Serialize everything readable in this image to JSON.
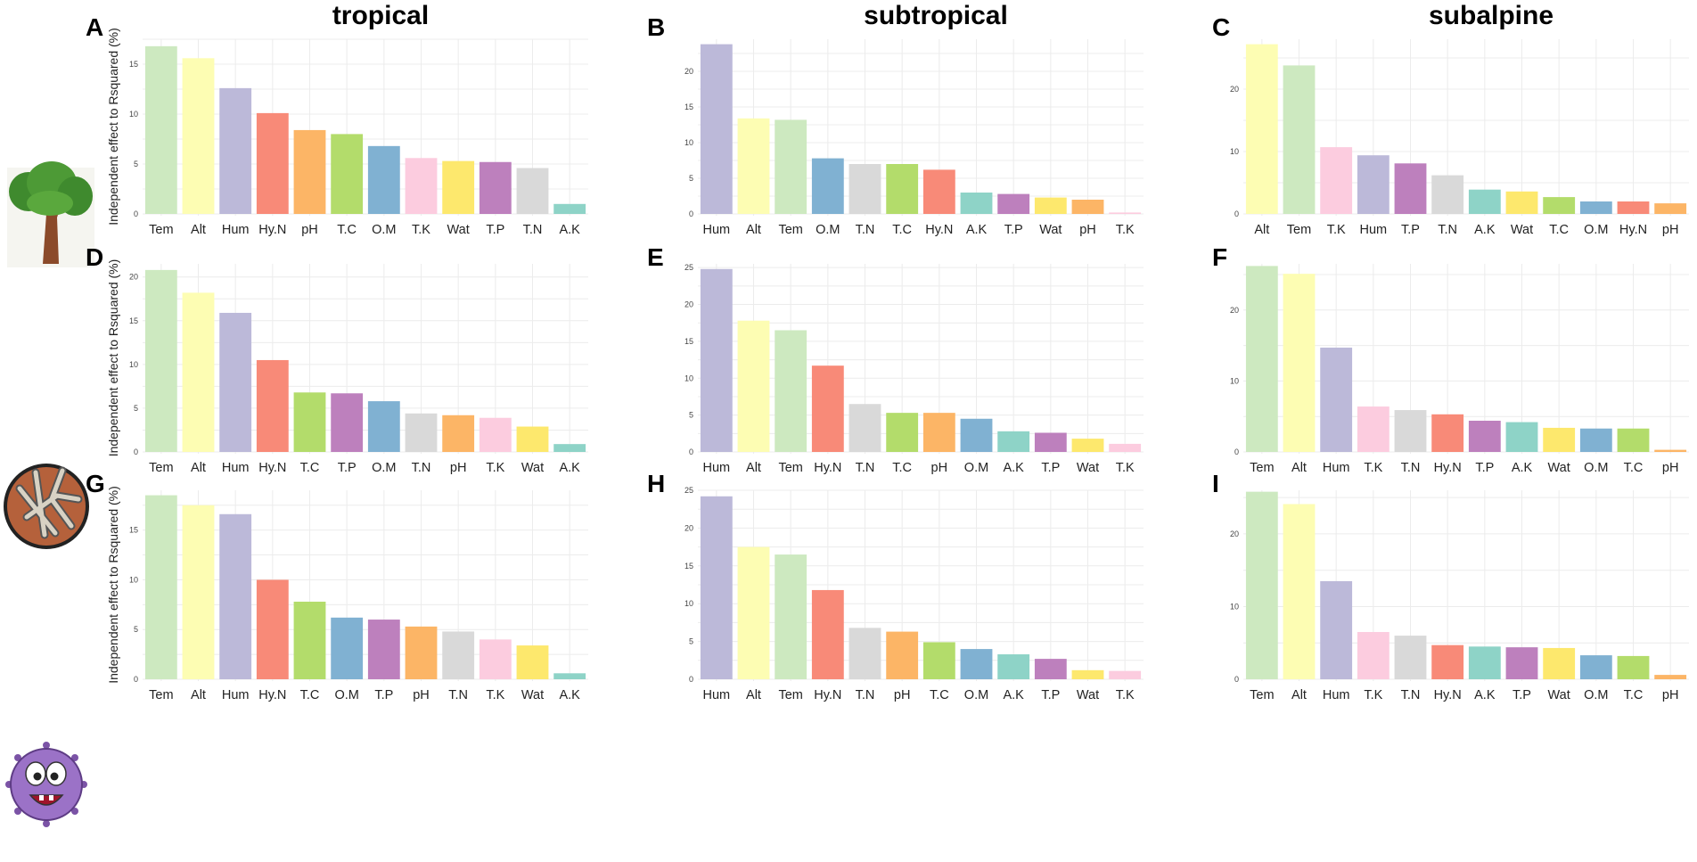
{
  "figure": {
    "column_titles": [
      "tropical",
      "subtropical",
      "subalpine"
    ],
    "ylabel": "Independent effect to Rsquared (%)",
    "row_icons": [
      "tree-icon",
      "fungus-hyphae-icon",
      "bacteria-cartoon-icon"
    ]
  },
  "colors": {
    "Tem": "#cde9c0",
    "Alt": "#fdfdb3",
    "Hum": "#bcb9d9",
    "Hy.N": "#f88a78",
    "pH": "#fcb566",
    "T.C": "#b3dc6b",
    "O.M": "#80b1d2",
    "T.K": "#fcccdf",
    "Wat": "#fde86d",
    "T.P": "#bd80bd",
    "T.N": "#d9d9d9",
    "A.K": "#8ed3c7"
  },
  "chart_data": [
    {
      "panel": "A",
      "type": "bar",
      "title": "tropical",
      "ylabel": "Independent effect to Rsquared (%)",
      "categories": [
        "Tem",
        "Alt",
        "Hum",
        "Hy.N",
        "pH",
        "T.C",
        "O.M",
        "T.K",
        "Wat",
        "T.P",
        "T.N",
        "A.K"
      ],
      "values": [
        16.8,
        15.6,
        12.6,
        10.1,
        8.4,
        8.0,
        6.8,
        5.6,
        5.3,
        5.2,
        4.6,
        1.0
      ],
      "ylim": [
        0,
        17.5
      ],
      "yticks": [
        0,
        5,
        10,
        15
      ]
    },
    {
      "panel": "B",
      "type": "bar",
      "title": "subtropical",
      "ylabel": "",
      "categories": [
        "Hum",
        "Alt",
        "Tem",
        "O.M",
        "T.N",
        "T.C",
        "Hy.N",
        "A.K",
        "T.P",
        "Wat",
        "pH",
        "T.K"
      ],
      "values": [
        23.8,
        13.4,
        13.2,
        7.8,
        7.0,
        7.0,
        6.2,
        3.0,
        2.8,
        2.3,
        2.0,
        0.2
      ],
      "ylim": [
        0,
        24.5
      ],
      "yticks": [
        0,
        5,
        10,
        15,
        20
      ]
    },
    {
      "panel": "C",
      "type": "bar",
      "title": "subalpine",
      "ylabel": "",
      "categories": [
        "Alt",
        "Tem",
        "T.K",
        "Hum",
        "T.P",
        "T.N",
        "A.K",
        "Wat",
        "T.C",
        "O.M",
        "Hy.N",
        "pH"
      ],
      "values": [
        27.2,
        23.8,
        10.7,
        9.4,
        8.1,
        6.2,
        3.9,
        3.6,
        2.7,
        2.0,
        2.0,
        1.7
      ],
      "ylim": [
        0,
        28
      ],
      "yticks": [
        0,
        10,
        20
      ]
    },
    {
      "panel": "D",
      "type": "bar",
      "title": "",
      "ylabel": "Independent effect to Rsquared (%)",
      "categories": [
        "Tem",
        "Alt",
        "Hum",
        "Hy.N",
        "T.C",
        "T.P",
        "O.M",
        "T.N",
        "pH",
        "T.K",
        "Wat",
        "A.K"
      ],
      "values": [
        20.8,
        18.2,
        15.9,
        10.5,
        6.8,
        6.7,
        5.8,
        4.4,
        4.2,
        3.9,
        2.9,
        0.9
      ],
      "ylim": [
        0,
        21.5
      ],
      "yticks": [
        0,
        5,
        10,
        15,
        20
      ]
    },
    {
      "panel": "E",
      "type": "bar",
      "title": "",
      "ylabel": "",
      "categories": [
        "Hum",
        "Alt",
        "Tem",
        "Hy.N",
        "T.N",
        "T.C",
        "pH",
        "O.M",
        "A.K",
        "T.P",
        "Wat",
        "T.K"
      ],
      "values": [
        24.8,
        17.8,
        16.5,
        11.7,
        6.5,
        5.3,
        5.3,
        4.5,
        2.8,
        2.6,
        1.8,
        1.1
      ],
      "ylim": [
        0,
        25.5
      ],
      "yticks": [
        0,
        5,
        10,
        15,
        20,
        25
      ]
    },
    {
      "panel": "F",
      "type": "bar",
      "title": "",
      "ylabel": "",
      "categories": [
        "Tem",
        "Alt",
        "Hum",
        "T.K",
        "T.N",
        "Hy.N",
        "T.P",
        "A.K",
        "Wat",
        "O.M",
        "T.C",
        "pH"
      ],
      "values": [
        26.2,
        25.1,
        14.7,
        6.4,
        5.9,
        5.3,
        4.4,
        4.2,
        3.4,
        3.3,
        3.3,
        0.3
      ],
      "ylim": [
        0,
        26.5
      ],
      "yticks": [
        0,
        10,
        20
      ]
    },
    {
      "panel": "G",
      "type": "bar",
      "title": "",
      "ylabel": "Independent effect to Rsquared (%)",
      "categories": [
        "Tem",
        "Alt",
        "Hum",
        "Hy.N",
        "T.C",
        "O.M",
        "T.P",
        "pH",
        "T.N",
        "T.K",
        "Wat",
        "A.K"
      ],
      "values": [
        18.5,
        17.5,
        16.6,
        10.0,
        7.8,
        6.2,
        6.0,
        5.3,
        4.8,
        4.0,
        3.4,
        0.6
      ],
      "ylim": [
        0,
        19
      ],
      "yticks": [
        0,
        5,
        10,
        15
      ]
    },
    {
      "panel": "H",
      "type": "bar",
      "title": "",
      "ylabel": "",
      "categories": [
        "Hum",
        "Alt",
        "Tem",
        "Hy.N",
        "T.N",
        "pH",
        "T.C",
        "O.M",
        "A.K",
        "T.P",
        "Wat",
        "T.K"
      ],
      "values": [
        24.2,
        17.5,
        16.5,
        11.8,
        6.8,
        6.3,
        4.9,
        4.0,
        3.3,
        2.7,
        1.2,
        1.1
      ],
      "ylim": [
        0,
        25
      ],
      "yticks": [
        0,
        5,
        10,
        15,
        20,
        25
      ]
    },
    {
      "panel": "I",
      "type": "bar",
      "title": "",
      "ylabel": "",
      "categories": [
        "Tem",
        "Alt",
        "Hum",
        "T.K",
        "T.N",
        "Hy.N",
        "A.K",
        "T.P",
        "Wat",
        "O.M",
        "T.C",
        "pH"
      ],
      "values": [
        25.8,
        24.1,
        13.5,
        6.5,
        6.0,
        4.7,
        4.5,
        4.4,
        4.3,
        3.3,
        3.2,
        0.6
      ],
      "ylim": [
        0,
        26
      ],
      "yticks": [
        0,
        10,
        20
      ]
    }
  ]
}
